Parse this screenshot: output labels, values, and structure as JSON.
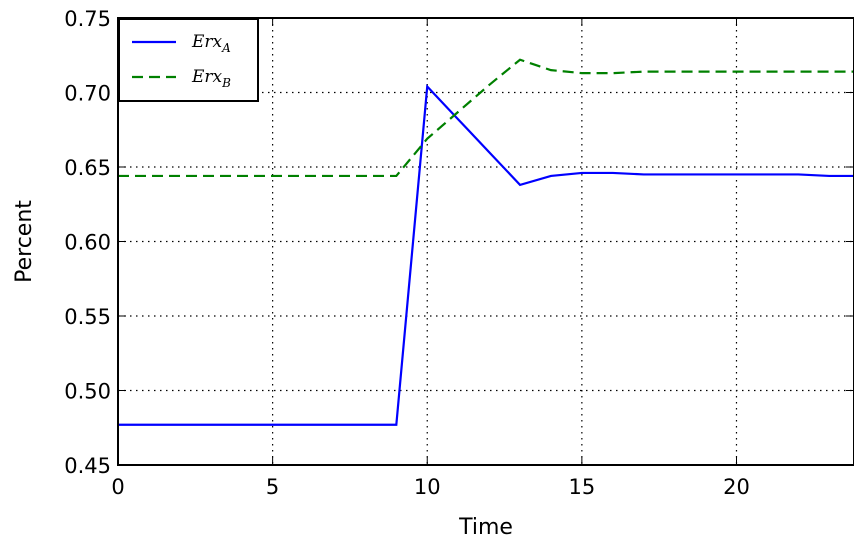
{
  "chart_data": {
    "type": "line",
    "xlabel": "Time",
    "ylabel": "Percent",
    "xlim": [
      0,
      23.8
    ],
    "ylim": [
      0.45,
      0.75
    ],
    "xticks": [
      0,
      5,
      10,
      15,
      20
    ],
    "xtick_labels": [
      "0",
      "5",
      "10",
      "15",
      "20"
    ],
    "yticks": [
      0.45,
      0.5,
      0.55,
      0.6,
      0.65,
      0.7,
      0.75
    ],
    "ytick_labels": [
      "0.45",
      "0.50",
      "0.55",
      "0.60",
      "0.65",
      "0.70",
      "0.75"
    ],
    "grid": true,
    "legend_position": "top-left",
    "series": [
      {
        "name": "Erx",
        "subscript": "A",
        "color": "#0000ff",
        "style": "solid",
        "x": [
          0,
          1,
          2,
          3,
          4,
          5,
          6,
          7,
          8,
          9,
          10,
          11,
          12,
          13,
          14,
          15,
          16,
          17,
          18,
          19,
          20,
          21,
          22,
          23,
          23.8
        ],
        "y": [
          0.477,
          0.477,
          0.477,
          0.477,
          0.477,
          0.477,
          0.477,
          0.477,
          0.477,
          0.477,
          0.704,
          0.682,
          0.66,
          0.638,
          0.644,
          0.646,
          0.646,
          0.645,
          0.645,
          0.645,
          0.645,
          0.645,
          0.645,
          0.644,
          0.644
        ]
      },
      {
        "name": "Erx",
        "subscript": "B",
        "color": "#008000",
        "style": "dashed",
        "x": [
          0,
          1,
          2,
          3,
          4,
          5,
          6,
          7,
          8,
          9,
          10,
          11,
          12,
          13,
          14,
          15,
          16,
          17,
          18,
          19,
          20,
          21,
          22,
          23,
          23.8
        ],
        "y": [
          0.644,
          0.644,
          0.644,
          0.644,
          0.644,
          0.644,
          0.644,
          0.644,
          0.644,
          0.644,
          0.669,
          0.687,
          0.705,
          0.722,
          0.715,
          0.713,
          0.713,
          0.714,
          0.714,
          0.714,
          0.714,
          0.714,
          0.714,
          0.714,
          0.714
        ]
      }
    ]
  }
}
